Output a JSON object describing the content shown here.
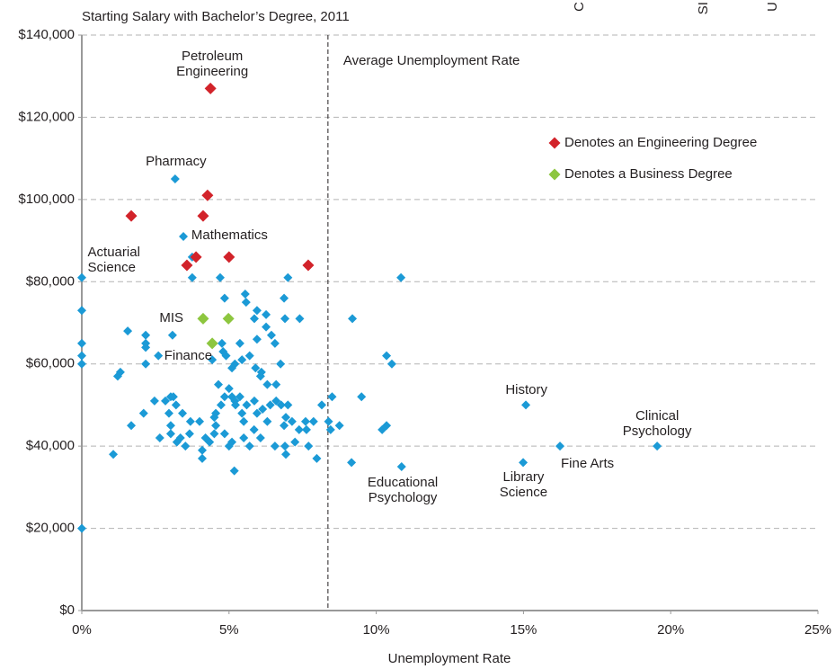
{
  "chart_data": {
    "type": "scatter",
    "title": "Starting Salary with Bachelor’s Degree, 2011",
    "xlabel": "Unemployment Rate",
    "xlim": [
      0,
      25
    ],
    "ylim": [
      0,
      140000
    ],
    "xticks": [
      {
        "value": 0,
        "label": "0%"
      },
      {
        "value": 5,
        "label": "5%"
      },
      {
        "value": 10,
        "label": "10%"
      },
      {
        "value": 15,
        "label": "15%"
      },
      {
        "value": 20,
        "label": "20%"
      },
      {
        "value": 25,
        "label": "25%"
      }
    ],
    "yticks": [
      {
        "value": 0,
        "label": "$0"
      },
      {
        "value": 20000,
        "label": "$20,000"
      },
      {
        "value": 40000,
        "label": "$40,000"
      },
      {
        "value": 60000,
        "label": "$60,000"
      },
      {
        "value": 80000,
        "label": "$80,000"
      },
      {
        "value": 100000,
        "label": "$100,000"
      },
      {
        "value": 120000,
        "label": "$120,000"
      },
      {
        "value": 140000,
        "label": "$140,000"
      }
    ],
    "grid": true,
    "legend": "upper right",
    "color": "#1b9ad6",
    "x": [
      0,
      0,
      0,
      0,
      0,
      0,
      3.17,
      3.45,
      3.75,
      3.75,
      4.7,
      7.0,
      10.84,
      4.85,
      5.55,
      5.58,
      6.87,
      5.95,
      6.26,
      6.9,
      7.4,
      5.86,
      9.19,
      1.56,
      2.17,
      3.08,
      6.44,
      6.56,
      2.17,
      2.17,
      4.76,
      5.37,
      5.95,
      6.26,
      2.6,
      2.17,
      1.31,
      1.22,
      10.35,
      10.53,
      4.9,
      5.2,
      5.44,
      5.7,
      5.9,
      6.1,
      6.75,
      5.1,
      4.43,
      4.8,
      6.07,
      6.3,
      6.6,
      5.0,
      4.64,
      3.02,
      2.47,
      2.84,
      3.11,
      3.2,
      2.96,
      3.42,
      2.65,
      3.02,
      3.02,
      3.23,
      3.35,
      3.52,
      3.66,
      3.69,
      4.0,
      4.09,
      4.09,
      4.2,
      4.5,
      4.5,
      4.55,
      4.73,
      4.85,
      5.1,
      5.2,
      5.37,
      5.22,
      5.44,
      5.6,
      5.86,
      5.95,
      6.14,
      6.4,
      6.6,
      6.77,
      7.0,
      6.93,
      7.14,
      7.38,
      7.6,
      8.15,
      8.5,
      8.38,
      8.75,
      8.45,
      9.5,
      10.35,
      10.2,
      9.16,
      10.86,
      5.0,
      5.1,
      5.5,
      5.7,
      6.07,
      6.3,
      6.56,
      6.9,
      6.93,
      7.24,
      7.7,
      7.98,
      5.18,
      4.85,
      4.34,
      5.5,
      5.85,
      4.55,
      1.07,
      1.68,
      2.1,
      7.63,
      7.87,
      6.87,
      15.08,
      16.24,
      14.99,
      19.54
    ],
    "values": [
      81000,
      73000,
      65000,
      62000,
      60000,
      20000,
      105000,
      91000,
      86000,
      81000,
      81000,
      81000,
      81000,
      76000,
      77000,
      75000,
      76000,
      73000,
      72000,
      71000,
      71000,
      71000,
      71000,
      68000,
      67000,
      67000,
      67000,
      65000,
      65000,
      64000,
      65000,
      65000,
      66000,
      69000,
      62000,
      60000,
      58000,
      57000,
      62000,
      60000,
      62000,
      60000,
      61000,
      62000,
      59000,
      58000,
      60000,
      59000,
      61000,
      63000,
      57000,
      55000,
      55000,
      54000,
      55000,
      52000,
      51000,
      51000,
      52000,
      50000,
      48000,
      48000,
      42000,
      45000,
      43000,
      41000,
      42000,
      40000,
      43000,
      46000,
      46000,
      37000,
      39000,
      42000,
      43000,
      47000,
      48000,
      50000,
      52000,
      52000,
      51000,
      52000,
      50000,
      48000,
      50000,
      51000,
      48000,
      49000,
      50000,
      51000,
      50000,
      50000,
      47000,
      46000,
      44000,
      46000,
      50000,
      52000,
      46000,
      45000,
      44000,
      52000,
      45000,
      44000,
      36000,
      35000,
      40000,
      41000,
      42000,
      40000,
      42000,
      46000,
      40000,
      40000,
      38000,
      41000,
      40000,
      37000,
      34000,
      43000,
      41000,
      46000,
      44000,
      45000,
      38000,
      45000,
      48000,
      44000,
      46000,
      45000,
      50000,
      40000,
      36000,
      40000
    ],
    "series": [
      {
        "name": "Denotes an Engineering Degree",
        "color": "#d2232a",
        "x": [
          4.37,
          4.27,
          1.68,
          4.12,
          3.88,
          5.0,
          3.57,
          7.69
        ],
        "values": [
          127000,
          101000,
          96000,
          96000,
          86000,
          86000,
          84000,
          84000
        ]
      },
      {
        "name": "Denotes a Business Degree",
        "color": "#8dc63f",
        "x": [
          4.12,
          4.98,
          4.43
        ],
        "values": [
          71000,
          71000,
          65000
        ]
      }
    ],
    "reference_line": {
      "x": 8.36,
      "label": "Average Unemployment Rate"
    },
    "annotations": [
      {
        "lines": [
          "Petroleum",
          "Engineering"
        ],
        "x": 4.43,
        "y": 134700,
        "anchor": "middle"
      },
      {
        "lines": [
          "Pharmacy"
        ],
        "x": 3.2,
        "y": 109200,
        "anchor": "middle"
      },
      {
        "lines": [
          "Actuarial",
          "Science"
        ],
        "x": 0.2,
        "y": 87100,
        "anchor": "start"
      },
      {
        "lines": [
          "Mathematics"
        ],
        "x": 3.72,
        "y": 91200,
        "anchor": "start"
      },
      {
        "lines": [
          "MIS"
        ],
        "x": 3.45,
        "y": 71100,
        "anchor": "end"
      },
      {
        "lines": [
          "Finance"
        ],
        "x": 2.8,
        "y": 61900,
        "anchor": "start"
      },
      {
        "lines": [
          "History"
        ],
        "x": 15.1,
        "y": 53600,
        "anchor": "middle"
      },
      {
        "lines": [
          "Clinical",
          "Psychology"
        ],
        "x": 19.54,
        "y": 47200,
        "anchor": "middle"
      },
      {
        "lines": [
          "Fine Arts"
        ],
        "x": 16.27,
        "y": 35700,
        "anchor": "start"
      },
      {
        "lines": [
          "Library",
          "Science"
        ],
        "x": 15.0,
        "y": 32400,
        "anchor": "middle"
      },
      {
        "lines": [
          "Educational",
          "Psychology"
        ],
        "x": 10.9,
        "y": 31100,
        "anchor": "middle"
      }
    ],
    "fragments": [
      "C",
      "SI",
      "U"
    ]
  }
}
